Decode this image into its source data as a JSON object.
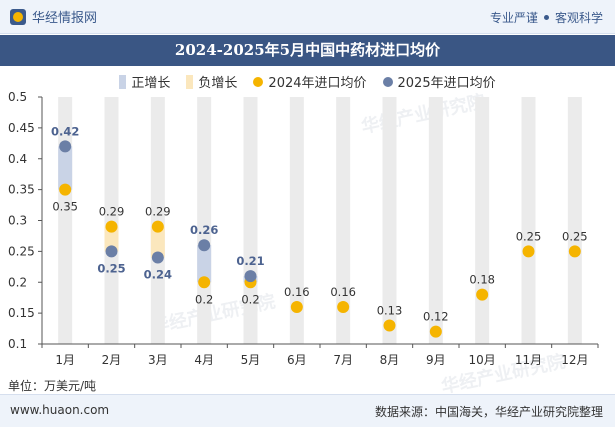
{
  "header": {
    "brand": "华经情报网",
    "slogan_left": "专业严谨",
    "slogan_right": "客观科学"
  },
  "chart_data": {
    "type": "line",
    "title": "2024-2025年5月中国中药材进口均价",
    "categories": [
      "1月",
      "2月",
      "3月",
      "4月",
      "5月",
      "6月",
      "7月",
      "8月",
      "9月",
      "10月",
      "11月",
      "12月"
    ],
    "ylim": [
      0.1,
      0.5
    ],
    "yticks": [
      "0.1",
      "0.15",
      "0.2",
      "0.25",
      "0.3",
      "0.35",
      "0.4",
      "0.45",
      "0.5"
    ],
    "legend": [
      "正增长",
      "负增长",
      "2024年进口均价",
      "2025年进口均价"
    ],
    "series": [
      {
        "name": "2024年进口均价",
        "color": "#f5b400",
        "values": [
          0.35,
          0.29,
          0.29,
          0.2,
          0.2,
          0.16,
          0.16,
          0.13,
          0.12,
          0.18,
          0.25,
          0.25
        ]
      },
      {
        "name": "2025年进口均价",
        "color": "#6b7fa6",
        "values": [
          0.42,
          0.25,
          0.24,
          0.26,
          0.21,
          null,
          null,
          null,
          null,
          null,
          null,
          null
        ]
      }
    ],
    "colors": {
      "positive": "#c9d3e6",
      "negative": "#fbe7bd",
      "background_bar": "#ebebeb"
    },
    "grid": false
  },
  "unit_label": "单位：万美元/吨",
  "footer": {
    "website": "www.huaon.com",
    "source": "数据来源：中国海关，华经产业研究院整理"
  },
  "watermark": "华经产业研究院"
}
